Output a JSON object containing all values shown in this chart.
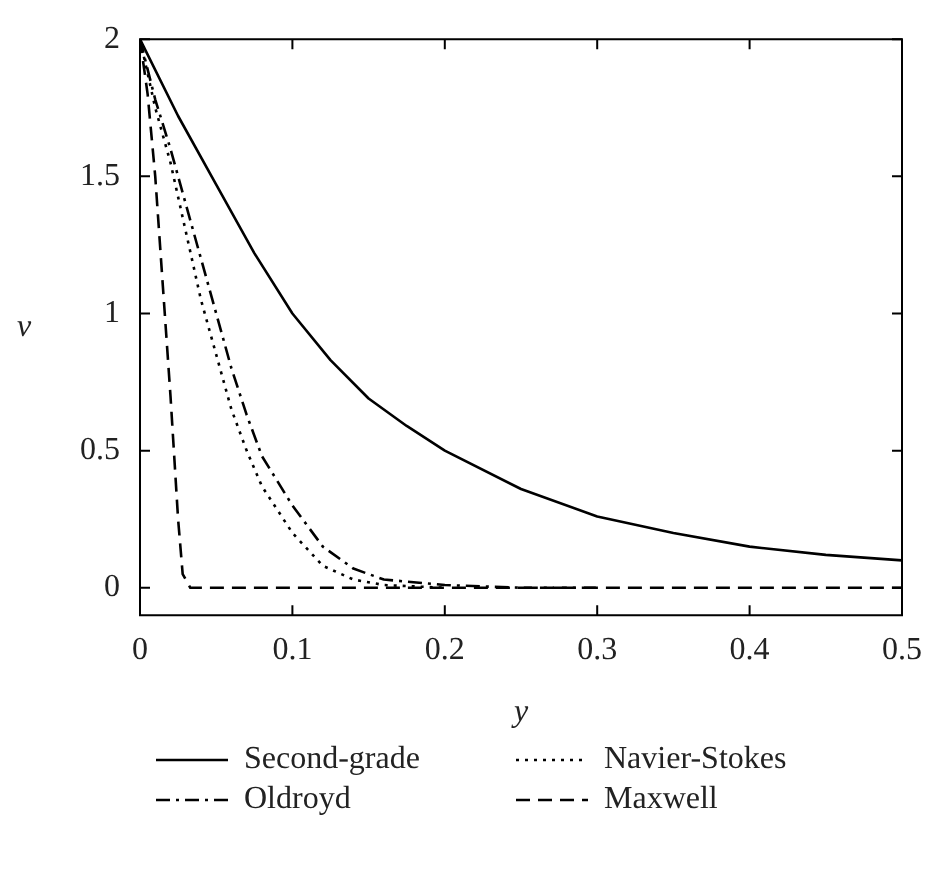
{
  "chart_data": {
    "type": "line",
    "xlabel": "y",
    "ylabel": "ν",
    "xlim": [
      0,
      0.5
    ],
    "ylim": [
      -0.1,
      2
    ],
    "xticks": [
      0,
      0.1,
      0.2,
      0.3,
      0.4,
      0.5
    ],
    "yticks": [
      0,
      0.5,
      1,
      1.5,
      2
    ],
    "grid": false,
    "legend": "bottom",
    "marker": "none",
    "series": [
      {
        "name": "Second-grade",
        "color": "#000000",
        "line_style": "solid",
        "x": [
          0,
          0.025,
          0.05,
          0.075,
          0.1,
          0.125,
          0.15,
          0.175,
          0.2,
          0.25,
          0.3,
          0.35,
          0.4,
          0.45,
          0.5
        ],
        "values": [
          2,
          1.72,
          1.47,
          1.22,
          1.0,
          0.83,
          0.69,
          0.59,
          0.5,
          0.36,
          0.26,
          0.2,
          0.15,
          0.12,
          0.1
        ]
      },
      {
        "name": "Navier-Stokes",
        "color": "#000000",
        "line_style": "dotted",
        "x": [
          0,
          0.01,
          0.02,
          0.03,
          0.04,
          0.05,
          0.06,
          0.07,
          0.08,
          0.1,
          0.12,
          0.14,
          0.16,
          0.2
        ],
        "values": [
          2,
          1.75,
          1.55,
          1.3,
          1.05,
          0.85,
          0.65,
          0.5,
          0.37,
          0.2,
          0.08,
          0.03,
          0.01,
          0
        ]
      },
      {
        "name": "Oldroyd",
        "color": "#000000",
        "line_style": "dashdot",
        "x": [
          0,
          0.01,
          0.02,
          0.03,
          0.04,
          0.05,
          0.06,
          0.07,
          0.08,
          0.1,
          0.12,
          0.14,
          0.16,
          0.2,
          0.25,
          0.3
        ],
        "values": [
          2,
          1.78,
          1.6,
          1.4,
          1.2,
          1.0,
          0.8,
          0.63,
          0.48,
          0.3,
          0.15,
          0.07,
          0.03,
          0.01,
          0,
          0
        ]
      },
      {
        "name": "Maxwell",
        "color": "#000000",
        "line_style": "dashed",
        "x": [
          0,
          0.005,
          0.01,
          0.015,
          0.02,
          0.025,
          0.028,
          0.033,
          0.5
        ],
        "values": [
          2,
          1.8,
          1.5,
          1.1,
          0.7,
          0.25,
          0.05,
          0,
          0
        ]
      }
    ]
  }
}
